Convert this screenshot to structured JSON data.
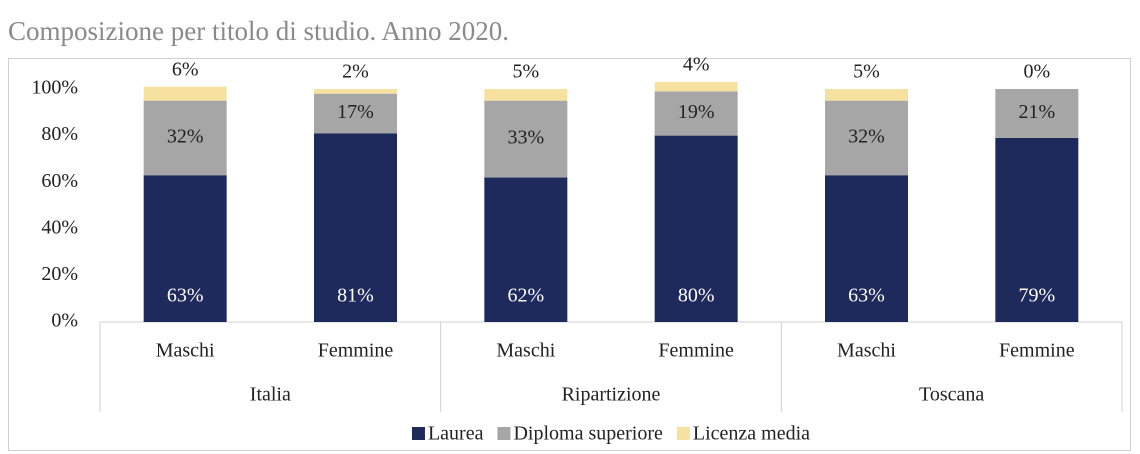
{
  "chart_data": {
    "type": "stacked_bar",
    "title": "Composizione per titolo di studio. Anno 2020.",
    "categories": [
      "Maschi",
      "Femmine",
      "Maschi",
      "Femmine",
      "Maschi",
      "Femmine"
    ],
    "groups": [
      "Italia",
      "Ripartizione",
      "Toscana"
    ],
    "series": [
      {
        "name": "Laurea",
        "color": "#1f2a5c",
        "values": [
          63,
          81,
          62,
          80,
          63,
          79
        ],
        "value_labels": [
          "63%",
          "81%",
          "62%",
          "80%",
          "63%",
          "79%"
        ]
      },
      {
        "name": "Diploma superiore",
        "color": "#a6a6a6",
        "values": [
          32,
          17,
          33,
          19,
          32,
          21
        ],
        "value_labels": [
          "32%",
          "17%",
          "33%",
          "19%",
          "32%",
          "21%"
        ]
      },
      {
        "name": "Licenza media",
        "color": "#f7e1a1",
        "values": [
          6,
          2,
          5,
          4,
          5,
          0
        ],
        "value_labels": [
          "6%",
          "2%",
          "5%",
          "4%",
          "5%",
          "0%"
        ]
      }
    ],
    "ylim": [
      0,
      100
    ],
    "yticks": [
      {
        "value": 0,
        "label": "0%"
      },
      {
        "value": 20,
        "label": "20%"
      },
      {
        "value": 40,
        "label": "40%"
      },
      {
        "value": 60,
        "label": "60%"
      },
      {
        "value": 80,
        "label": "80%"
      },
      {
        "value": 100,
        "label": "100%"
      }
    ],
    "legend": "bottom"
  }
}
